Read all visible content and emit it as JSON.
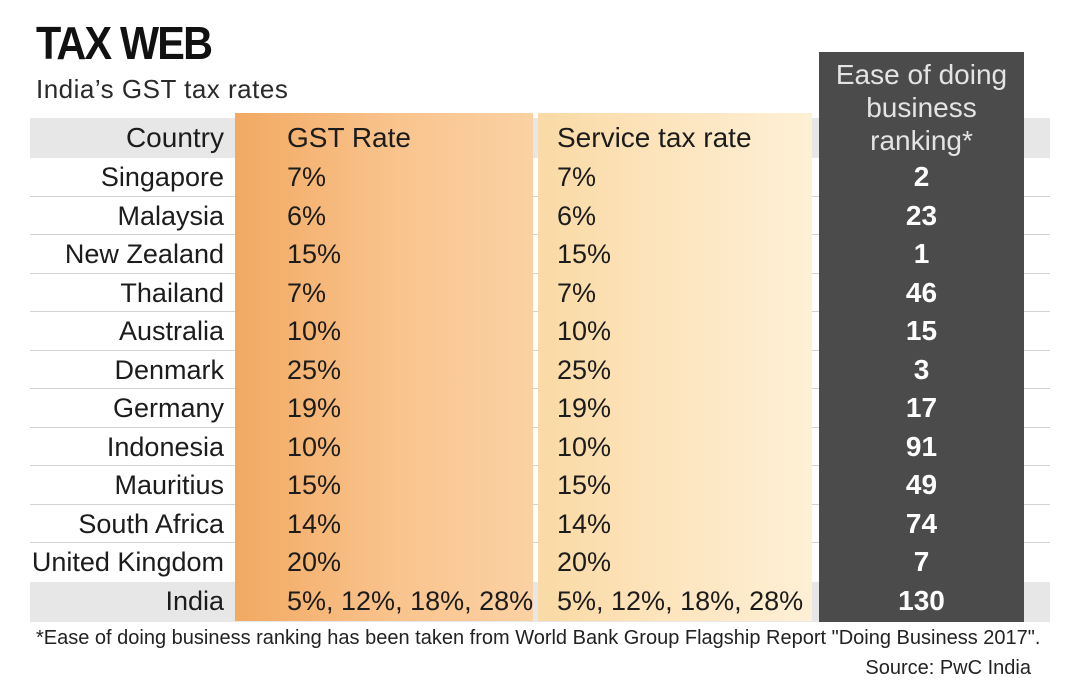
{
  "title": "TAX WEB",
  "subtitle": "India’s GST tax rates",
  "chart_data": {
    "type": "table",
    "title": "TAX WEB",
    "subtitle": "India’s GST tax rates",
    "columns": [
      "Country",
      "GST Rate",
      "Service tax rate",
      "Ease of doing business ranking*"
    ],
    "rank_header_lines": [
      "Ease of doing",
      "business",
      "ranking*"
    ],
    "rows": [
      {
        "country": "Singapore",
        "gst": "7%",
        "service_tax": "7%",
        "ranking": "2"
      },
      {
        "country": "Malaysia",
        "gst": "6%",
        "service_tax": "6%",
        "ranking": "23"
      },
      {
        "country": "New Zealand",
        "gst": "15%",
        "service_tax": "15%",
        "ranking": "1"
      },
      {
        "country": "Thailand",
        "gst": "7%",
        "service_tax": "7%",
        "ranking": "46"
      },
      {
        "country": "Australia",
        "gst": "10%",
        "service_tax": "10%",
        "ranking": "15"
      },
      {
        "country": "Denmark",
        "gst": "25%",
        "service_tax": "25%",
        "ranking": "3"
      },
      {
        "country": "Germany",
        "gst": "19%",
        "service_tax": "19%",
        "ranking": "17"
      },
      {
        "country": "Indonesia",
        "gst": "10%",
        "service_tax": "10%",
        "ranking": "91"
      },
      {
        "country": "Mauritius",
        "gst": "15%",
        "service_tax": "15%",
        "ranking": "49"
      },
      {
        "country": "South Africa",
        "gst": "14%",
        "service_tax": "14%",
        "ranking": "74"
      },
      {
        "country": "United Kingdom",
        "gst": "20%",
        "service_tax": "20%",
        "ranking": "7"
      },
      {
        "country": "India",
        "gst": "5%, 12%, 18%, 28%",
        "service_tax": "5%, 12%, 18%, 28%",
        "ranking": "130"
      }
    ],
    "footnote": "*Ease of doing business ranking has been taken from World Bank Group Flagship Report \"Doing Business 2017\".",
    "source": "Source: PwC India"
  },
  "colors": {
    "gst_column": "#f6b877",
    "service_column": "#fde3b8",
    "ranking_column": "#4b4b4b",
    "header_band": "#e7e7e7"
  }
}
